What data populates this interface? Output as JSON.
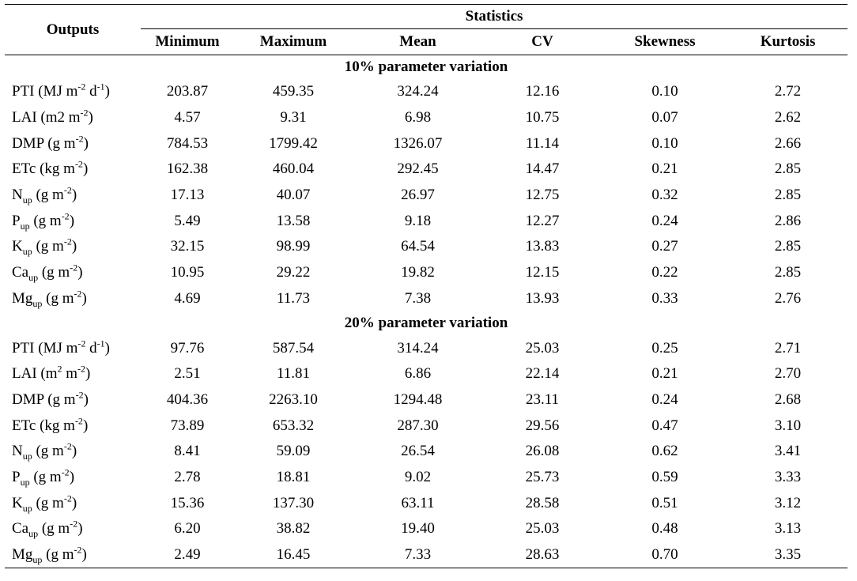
{
  "table": {
    "header": {
      "outputs_label": "Outputs",
      "statistics_label": "Statistics",
      "columns": [
        "Minimum",
        "Maximum",
        "Mean",
        "CV",
        "Skewness",
        "Kurtosis"
      ]
    },
    "sections": [
      {
        "title": "10% parameter variation",
        "rows": [
          {
            "label": {
              "base": "PTI",
              "parts": [
                " (MJ m",
                {
                  "sup": "-2"
                },
                " d",
                {
                  "sup": "-1"
                },
                ")"
              ]
            },
            "values": [
              "203.87",
              "459.35",
              "324.24",
              "12.16",
              "0.10",
              "2.72"
            ]
          },
          {
            "label": {
              "base": "LAI",
              "parts": [
                " (m2 m",
                {
                  "sup": "-2"
                },
                ")"
              ]
            },
            "values": [
              "4.57",
              "9.31",
              "6.98",
              "10.75",
              "0.07",
              "2.62"
            ]
          },
          {
            "label": {
              "base": "DMP",
              "parts": [
                " (g m",
                {
                  "sup": "-2"
                },
                ")"
              ]
            },
            "values": [
              "784.53",
              "1799.42",
              "1326.07",
              "11.14",
              "0.10",
              "2.66"
            ]
          },
          {
            "label": {
              "base": "ETc",
              "parts": [
                " (kg m",
                {
                  "sup": "-2"
                },
                ")"
              ]
            },
            "values": [
              "162.38",
              "460.04",
              "292.45",
              "14.47",
              "0.21",
              "2.85"
            ]
          },
          {
            "label": {
              "base": "N",
              "parts": [
                {
                  "sub": "up"
                },
                " (g m",
                {
                  "sup": "-2"
                },
                ")"
              ]
            },
            "values": [
              "17.13",
              "40.07",
              "26.97",
              "12.75",
              "0.32",
              "2.85"
            ]
          },
          {
            "label": {
              "base": "P",
              "parts": [
                {
                  "sub": "up"
                },
                " (g m",
                {
                  "sup": "-2"
                },
                ")"
              ]
            },
            "values": [
              "5.49",
              "13.58",
              "9.18",
              "12.27",
              "0.24",
              "2.86"
            ]
          },
          {
            "label": {
              "base": "K",
              "parts": [
                {
                  "sub": "up"
                },
                " (g m",
                {
                  "sup": "-2"
                },
                ")"
              ]
            },
            "values": [
              "32.15",
              "98.99",
              "64.54",
              "13.83",
              "0.27",
              "2.85"
            ]
          },
          {
            "label": {
              "base": "Ca",
              "parts": [
                {
                  "sub": "up"
                },
                " (g m",
                {
                  "sup": "-2"
                },
                ")"
              ]
            },
            "values": [
              "10.95",
              "29.22",
              "19.82",
              "12.15",
              "0.22",
              "2.85"
            ]
          },
          {
            "label": {
              "base": "Mg",
              "parts": [
                {
                  "sub": "up"
                },
                " (g m",
                {
                  "sup": "-2"
                },
                ")"
              ]
            },
            "values": [
              "4.69",
              "11.73",
              "7.38",
              "13.93",
              "0.33",
              "2.76"
            ]
          }
        ]
      },
      {
        "title": "20% parameter variation",
        "rows": [
          {
            "label": {
              "base": "PTI",
              "parts": [
                " (MJ m",
                {
                  "sup": "-2"
                },
                " d",
                {
                  "sup": "-1"
                },
                ")"
              ]
            },
            "values": [
              "97.76",
              "587.54",
              "314.24",
              "25.03",
              "0.25",
              "2.71"
            ]
          },
          {
            "label": {
              "base": "LAI",
              "parts": [
                " (m",
                {
                  "sup": "2"
                },
                " m",
                {
                  "sup": "-2"
                },
                ")"
              ]
            },
            "values": [
              "2.51",
              "11.81",
              "6.86",
              "22.14",
              "0.21",
              "2.70"
            ]
          },
          {
            "label": {
              "base": "DMP",
              "parts": [
                " (g m",
                {
                  "sup": "-2"
                },
                ")"
              ]
            },
            "values": [
              "404.36",
              "2263.10",
              "1294.48",
              "23.11",
              "0.24",
              "2.68"
            ]
          },
          {
            "label": {
              "base": "ETc",
              "parts": [
                " (kg m",
                {
                  "sup": "-2"
                },
                ")"
              ]
            },
            "values": [
              "73.89",
              "653.32",
              "287.30",
              "29.56",
              "0.47",
              "3.10"
            ]
          },
          {
            "label": {
              "base": "N",
              "parts": [
                {
                  "sub": "up"
                },
                " (g m",
                {
                  "sup": "-2"
                },
                ")"
              ]
            },
            "values": [
              "8.41",
              "59.09",
              "26.54",
              "26.08",
              "0.62",
              "3.41"
            ]
          },
          {
            "label": {
              "base": "P",
              "parts": [
                {
                  "sub": "up"
                },
                " (g m",
                {
                  "sup": "-2"
                },
                ")"
              ]
            },
            "values": [
              "2.78",
              "18.81",
              "9.02",
              "25.73",
              "0.59",
              "3.33"
            ]
          },
          {
            "label": {
              "base": "K",
              "parts": [
                {
                  "sub": "up"
                },
                " (g m",
                {
                  "sup": "-2"
                },
                ")"
              ]
            },
            "values": [
              "15.36",
              "137.30",
              "63.11",
              "28.58",
              "0.51",
              "3.12"
            ]
          },
          {
            "label": {
              "base": "Ca",
              "parts": [
                {
                  "sub": "up"
                },
                " (g m",
                {
                  "sup": "-2"
                },
                ")"
              ]
            },
            "values": [
              "6.20",
              "38.82",
              "19.40",
              "25.03",
              "0.48",
              "3.13"
            ]
          },
          {
            "label": {
              "base": "Mg",
              "parts": [
                {
                  "sub": "up"
                },
                " (g m",
                {
                  "sup": "-2"
                },
                ")"
              ]
            },
            "values": [
              "2.49",
              "16.45",
              "7.33",
              "28.63",
              "0.70",
              "3.35"
            ]
          }
        ]
      }
    ]
  }
}
